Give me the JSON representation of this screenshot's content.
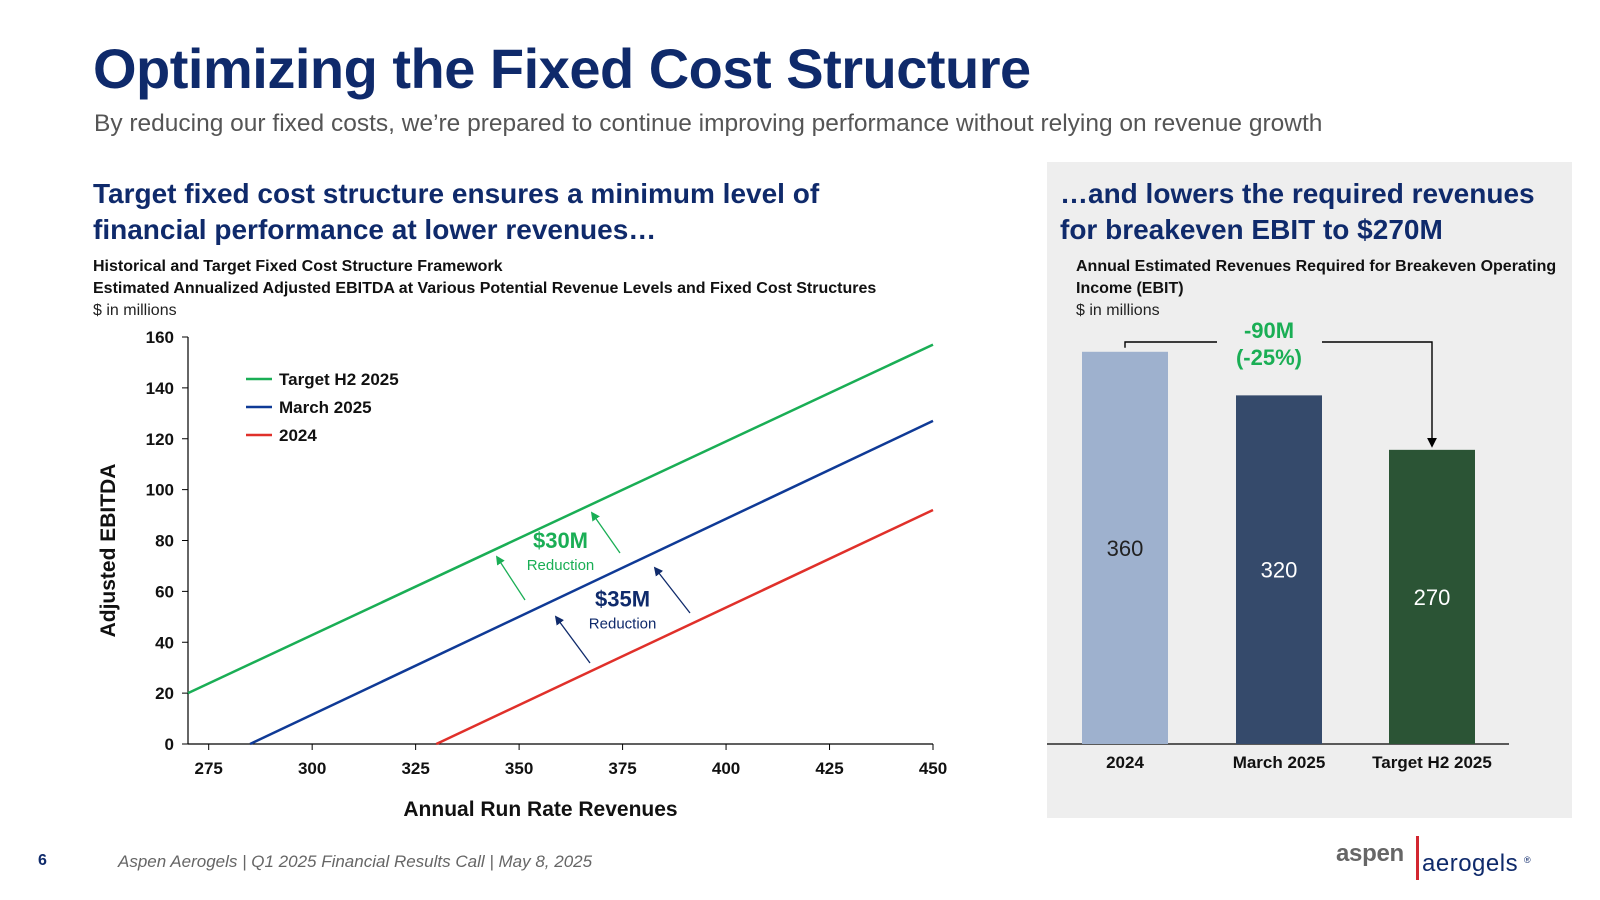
{
  "slide": {
    "title": "Optimizing the Fixed Cost Structure",
    "subtitle": "By reducing our fixed costs, we’re prepared to continue improving performance without relying on revenue growth",
    "footer_page": "6",
    "footer_text": "Aspen Aerogels | Q1 2025 Financial Results Call | May 8, 2025",
    "logo": {
      "part1": "aspen",
      "part2": "aerogels",
      "mark": "®"
    }
  },
  "left": {
    "heading": "Target fixed cost structure ensures a minimum level of financial performance at lower revenues…",
    "desc1": "Historical and Target Fixed Cost Structure Framework",
    "desc2": "Estimated Annualized Adjusted EBITDA at Various Potential Revenue Levels and Fixed Cost Structures",
    "desc3": "$ in millions"
  },
  "right": {
    "heading": "…and lowers the required revenues for breakeven EBIT to $270M",
    "desc1": "Annual Estimated Revenues Required for Breakeven Operating Income (EBIT)",
    "desc2": "$ in millions"
  },
  "chart_data": [
    {
      "type": "line",
      "xlabel": "Annual Run Rate Revenues",
      "ylabel": "Adjusted EBITDA",
      "xlim": [
        270,
        450
      ],
      "ylim": [
        0,
        160
      ],
      "x_ticks": [
        275,
        300,
        325,
        350,
        375,
        400,
        425,
        450
      ],
      "y_ticks": [
        0,
        20,
        40,
        60,
        80,
        100,
        120,
        140,
        160
      ],
      "legend_position": "top-left",
      "series": [
        {
          "name": "Target H2 2025",
          "color": "#1aae55",
          "points": [
            [
              270,
              20
            ],
            [
              450,
              157
            ]
          ]
        },
        {
          "name": "March 2025",
          "color": "#0f3a96",
          "points": [
            [
              285,
              0
            ],
            [
              450,
              127
            ]
          ]
        },
        {
          "name": "2024",
          "color": "#e0302a",
          "points": [
            [
              330,
              0
            ],
            [
              450,
              92
            ]
          ]
        }
      ],
      "annotations": [
        {
          "value": "$30M",
          "label": "Reduction",
          "color": "#1aae55",
          "x": 360,
          "y": 77
        },
        {
          "value": "$35M",
          "label": "Reduction",
          "color": "#0f2a6b",
          "x": 375,
          "y": 54
        }
      ],
      "grid": false
    },
    {
      "type": "bar",
      "categories": [
        "2024",
        "March 2025",
        "Target H2 2025"
      ],
      "values": [
        360,
        320,
        270
      ],
      "colors": [
        "#9eb1ce",
        "#354a6b",
        "#2b5435"
      ],
      "ylim": [
        0,
        380
      ],
      "annotation": {
        "line1": "-90M",
        "line2": "(-25%)",
        "color": "#1aae55"
      },
      "grid": false
    }
  ]
}
